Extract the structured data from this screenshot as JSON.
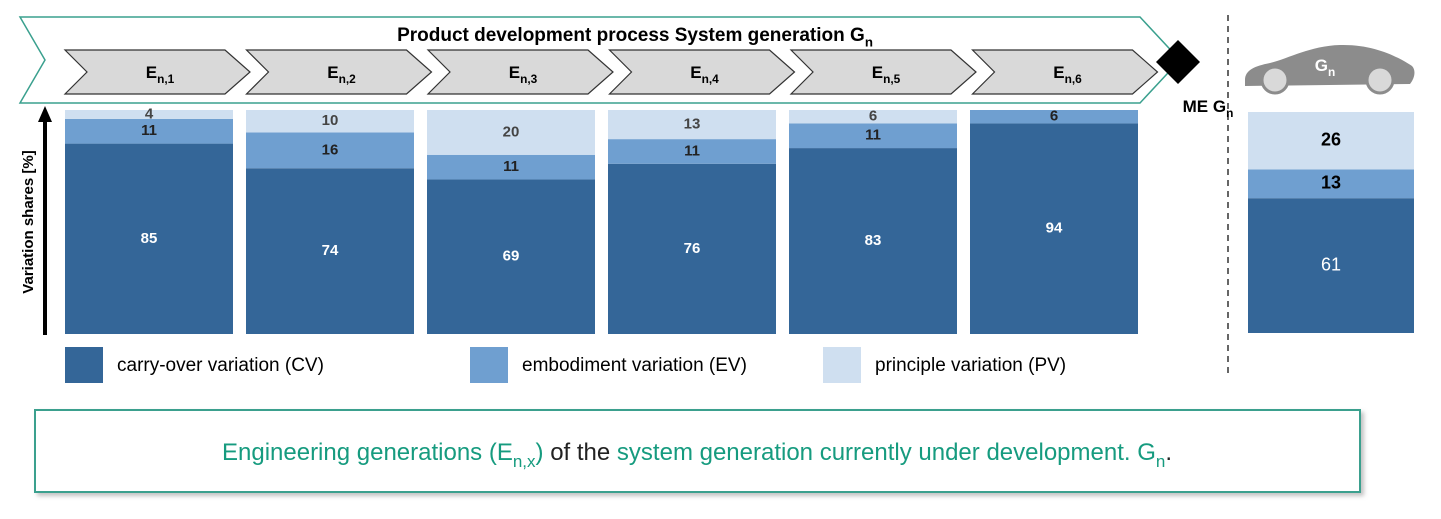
{
  "chart_data": [
    {
      "type": "bar",
      "stacked": true,
      "title": {
        "text": "Product development process System generation G",
        "sub": "n"
      },
      "categories": [
        {
          "text": "E",
          "sub": "n,1"
        },
        {
          "text": "E",
          "sub": "n,2"
        },
        {
          "text": "E",
          "sub": "n,3"
        },
        {
          "text": "E",
          "sub": "n,4"
        },
        {
          "text": "E",
          "sub": "n,5"
        },
        {
          "text": "E",
          "sub": "n,6"
        }
      ],
      "y_label": "Variation shares  [%]",
      "ylim": [
        0,
        100
      ],
      "series": [
        {
          "name": "carry-over variation (CV)",
          "color": "#346698",
          "values": [
            85,
            74,
            69,
            76,
            83,
            94
          ]
        },
        {
          "name": "embodiment variation (EV)",
          "color": "#6f9fd0",
          "values": [
            11,
            16,
            11,
            11,
            11,
            6
          ]
        },
        {
          "name": "principle variation (PV)",
          "color": "#cfdff0",
          "values": [
            4,
            10,
            20,
            13,
            6,
            null
          ]
        }
      ]
    },
    {
      "type": "bar",
      "stacked": true,
      "title": {
        "text": "G",
        "sub": "n"
      },
      "ylim": [
        0,
        100
      ],
      "series": [
        {
          "color": "#346698",
          "values": [
            61
          ]
        },
        {
          "color": "#6f9fd0",
          "values": [
            13
          ]
        },
        {
          "color": "#cfdff0",
          "values": [
            26
          ]
        }
      ]
    }
  ],
  "milestone": {
    "text": "ME G",
    "sub": "n"
  },
  "caption": [
    {
      "text": "Engineering generations (E",
      "color": "#169b7f"
    },
    {
      "text": "n,x",
      "color": "#169b7f",
      "sub": true
    },
    {
      "text": ")",
      "color": "#169b7f"
    },
    {
      "text": " of the ",
      "color": "#222222"
    },
    {
      "text": "system generation currently under development. G",
      "color": "#169b7f"
    },
    {
      "text": "n",
      "color": "#169b7f",
      "sub": true
    },
    {
      "text": ".",
      "color": "#222222"
    }
  ]
}
